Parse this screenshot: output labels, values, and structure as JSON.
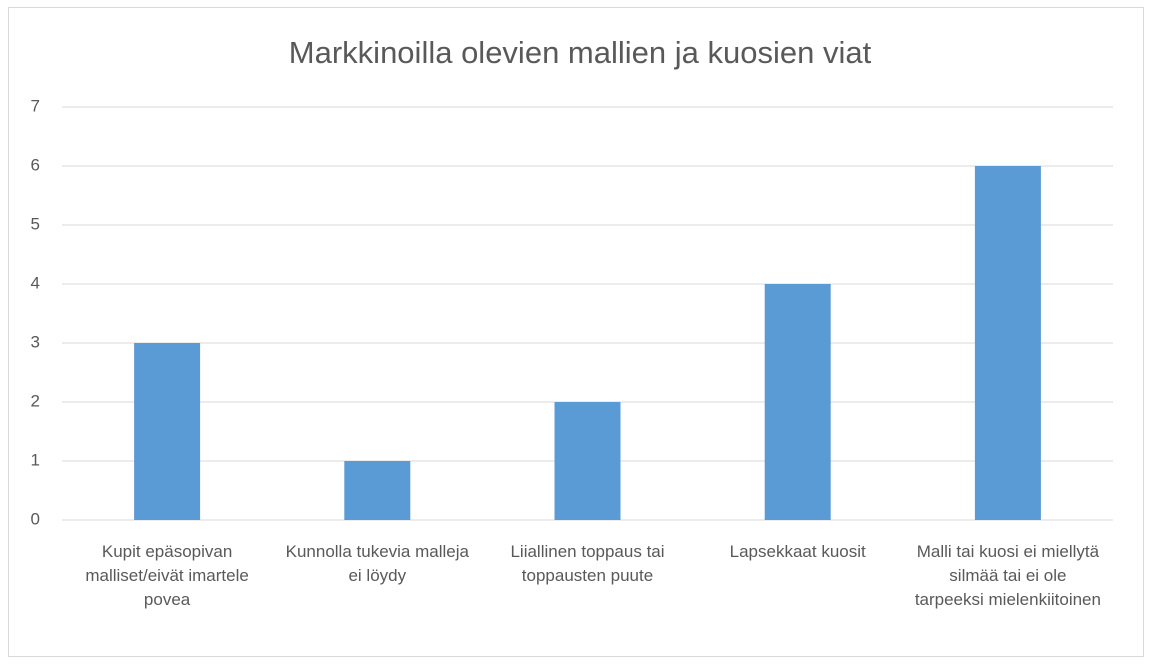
{
  "chart_data": {
    "type": "bar",
    "title": "Markkinoilla olevien mallien ja kuosien viat",
    "categories": [
      "Kupit epäsopivan malliset/eivät imartele povea",
      "Kunnolla tukevia malleja ei löydy",
      "Liiallinen toppaus tai toppausten puute",
      "Lapsekkaat kuosit",
      "Malli tai kuosi ei miellytä silmää tai ei ole tarpeeksi mielenkiitoinen"
    ],
    "values": [
      3,
      1,
      2,
      4,
      6
    ],
    "color": "#5b9bd5",
    "ylim": [
      0,
      7
    ],
    "yticks": [
      0,
      1,
      2,
      3,
      4,
      5,
      6,
      7
    ],
    "grid": true
  }
}
